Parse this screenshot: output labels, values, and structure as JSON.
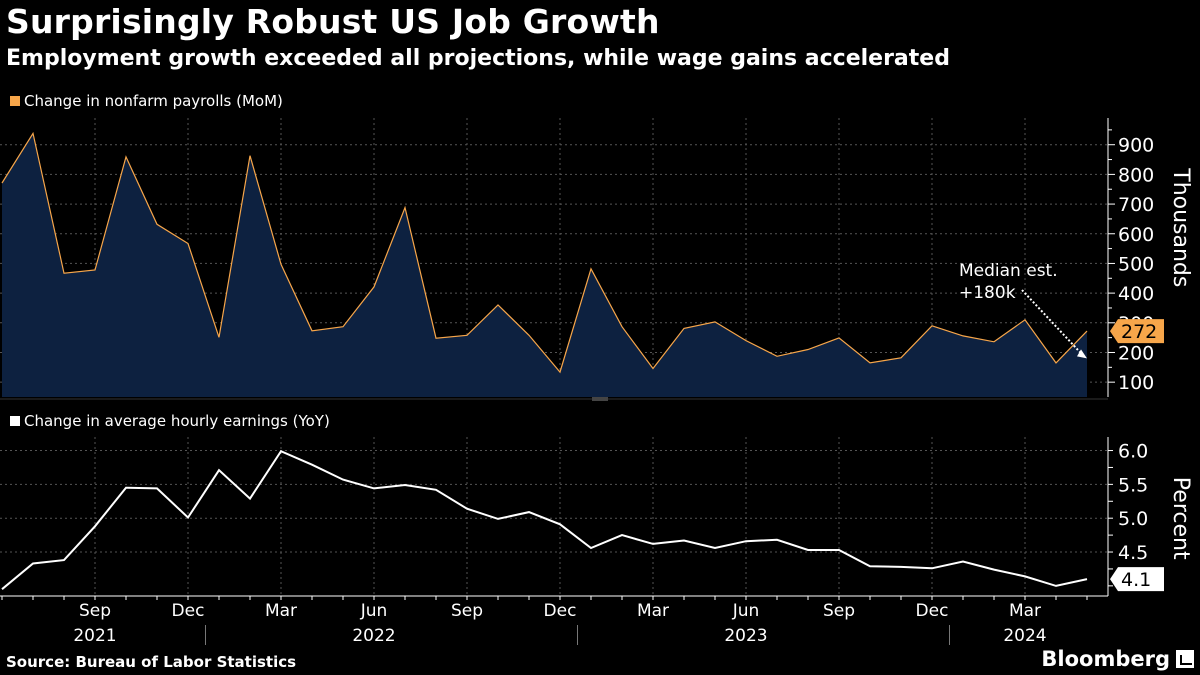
{
  "title": "Surprisingly Robust US Job Growth",
  "subtitle": "Employment growth exceeded all projections, while wage gains accelerated",
  "source": "Source: Bureau of Labor Statistics",
  "brand": "Bloomberg",
  "colors": {
    "payrolls": "#f7a64a",
    "payrolls_fill": "#0d2140",
    "earnings": "#ffffff",
    "grid": "#555555"
  },
  "chart_data": [
    {
      "type": "area",
      "legend": "Change in nonfarm payrolls (MoM)",
      "ylabel": "Thousands",
      "ylim": [
        50,
        990
      ],
      "yticks": [
        100,
        200,
        300,
        400,
        500,
        600,
        700,
        800,
        900
      ],
      "months": [
        "2021-06",
        "2021-07",
        "2021-08",
        "2021-09",
        "2021-10",
        "2021-11",
        "2021-12",
        "2022-01",
        "2022-02",
        "2022-03",
        "2022-04",
        "2022-05",
        "2022-06",
        "2022-07",
        "2022-08",
        "2022-09",
        "2022-10",
        "2022-11",
        "2022-12",
        "2023-01",
        "2023-02",
        "2023-03",
        "2023-04",
        "2023-05",
        "2023-06",
        "2023-07",
        "2023-08",
        "2023-09",
        "2023-10",
        "2023-11",
        "2023-12",
        "2024-01",
        "2024-02",
        "2024-03",
        "2024-04",
        "2024-05"
      ],
      "values": [
        771,
        938,
        467,
        478,
        859,
        632,
        567,
        251,
        863,
        497,
        273,
        287,
        421,
        688,
        248,
        258,
        360,
        258,
        134,
        482,
        287,
        146,
        281,
        303,
        240,
        187,
        210,
        249,
        165,
        182,
        290,
        256,
        236,
        310,
        165,
        272
      ],
      "last_value_label": "272",
      "annotation": [
        "Median est.",
        "+180k"
      ],
      "median_estimate": 180
    },
    {
      "type": "line",
      "legend": "Change in average hourly earnings (YoY)",
      "ylabel": "Percent",
      "ylim": [
        3.85,
        6.2
      ],
      "yticks": [
        "4.5",
        "5.0",
        "5.5",
        "6.0"
      ],
      "values": [
        3.95,
        4.33,
        4.38,
        4.88,
        5.45,
        5.44,
        5.01,
        5.71,
        5.29,
        5.99,
        5.79,
        5.57,
        5.44,
        5.49,
        5.42,
        5.14,
        4.99,
        5.09,
        4.91,
        4.56,
        4.75,
        4.62,
        4.67,
        4.56,
        4.66,
        4.68,
        4.53,
        4.53,
        4.29,
        4.28,
        4.26,
        4.36,
        4.24,
        4.14,
        4.0,
        4.1
      ],
      "last_value_label": "4.1"
    }
  ],
  "x_axis": {
    "month_labels": [
      {
        "label": "Sep",
        "month": "2021-09"
      },
      {
        "label": "Dec",
        "month": "2021-12"
      },
      {
        "label": "Mar",
        "month": "2022-03"
      },
      {
        "label": "Jun",
        "month": "2022-06"
      },
      {
        "label": "Sep",
        "month": "2022-09"
      },
      {
        "label": "Dec",
        "month": "2022-12"
      },
      {
        "label": "Mar",
        "month": "2023-03"
      },
      {
        "label": "Jun",
        "month": "2023-06"
      },
      {
        "label": "Sep",
        "month": "2023-09"
      },
      {
        "label": "Dec",
        "month": "2023-12"
      },
      {
        "label": "Mar",
        "month": "2024-03"
      }
    ],
    "year_labels": [
      {
        "label": "2021",
        "month": "2021-09"
      },
      {
        "label": "2022",
        "month": "2022-06"
      },
      {
        "label": "2023",
        "month": "2023-06"
      },
      {
        "label": "2024",
        "month": "2024-03"
      }
    ]
  }
}
